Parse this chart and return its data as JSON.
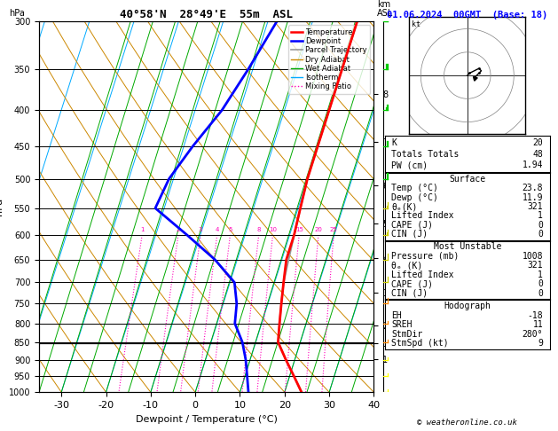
{
  "title_left": "40°58'N  28°49'E  55m  ASL",
  "title_right": "01.06.2024  00GMT  (Base: 18)",
  "xlabel": "Dewpoint / Temperature (°C)",
  "ylabel_left": "hPa",
  "pressure_levels": [
    300,
    350,
    400,
    450,
    500,
    550,
    600,
    650,
    700,
    750,
    800,
    850,
    900,
    950,
    1000
  ],
  "temp_x": [
    10,
    10,
    10,
    10,
    10,
    10.5,
    11,
    11,
    12,
    13,
    14,
    15,
    18,
    21,
    23.8
  ],
  "dewp_x": [
    -8,
    -11,
    -14,
    -18,
    -21,
    -22,
    -13,
    -5,
    1,
    3,
    4,
    7,
    9,
    10.5,
    11.9
  ],
  "parcel_x": [
    10,
    10,
    10,
    10,
    10,
    10.5,
    11,
    11.5,
    12,
    13,
    14,
    15,
    18,
    21,
    23.8
  ],
  "xmin": -35,
  "xmax": 40,
  "pmin": 300,
  "pmax": 1000,
  "skew_factor": 0.35,
  "mixing_ratio_values": [
    1,
    2,
    3,
    4,
    5,
    8,
    10,
    15,
    20,
    25
  ],
  "km_ticks": [
    1,
    2,
    3,
    4,
    5,
    6,
    7,
    8
  ],
  "km_pressures": [
    897,
    806,
    724,
    647,
    578,
    510,
    443,
    380
  ],
  "lcl_pressure": 853,
  "colors": {
    "temperature": "#ff0000",
    "dewpoint": "#0000ff",
    "parcel": "#999999",
    "dry_adiabat": "#cc8800",
    "wet_adiabat": "#00aa00",
    "isotherm": "#00aaff",
    "mixing_ratio": "#ff00bb",
    "background": "#ffffff"
  },
  "wind_barb_colors": [
    "#00cc00",
    "#00cc00",
    "#00cc00",
    "#00cc00",
    "#00cc00",
    "#cccc00",
    "#cccc00",
    "#cccc00",
    "#cccc00",
    "#ff8800",
    "#ff8800",
    "#ff8800",
    "#ffff00",
    "#ffff00",
    "#ffff00"
  ],
  "stats": {
    "K": "20",
    "Totals_Totals": "48",
    "PW_cm": "1.94",
    "Surf_Temp": "23.8",
    "Surf_Dewp": "11.9",
    "Surf_theta_e": "321",
    "Surf_LI": "1",
    "Surf_CAPE": "0",
    "Surf_CIN": "0",
    "MU_Pressure": "1008",
    "MU_theta_e": "321",
    "MU_LI": "1",
    "MU_CAPE": "0",
    "MU_CIN": "0",
    "Hodo_EH": "-18",
    "Hodo_SREH": "11",
    "Hodo_StmDir": "280°",
    "Hodo_StmSpd": "9"
  }
}
